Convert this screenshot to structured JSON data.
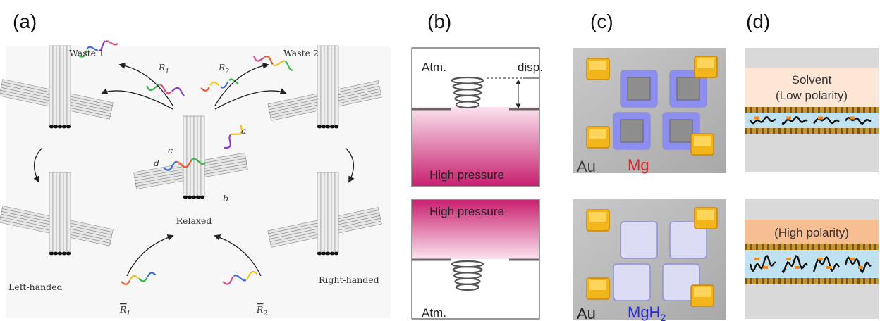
{
  "a": {
    "label": "(a)",
    "waste_1": "Waste 1",
    "waste_2": "Waste 2",
    "r1": {
      "base": "R",
      "sub": "1"
    },
    "r2": {
      "base": "R",
      "sub": "2"
    },
    "strand_labels": [
      "a",
      "b",
      "c",
      "d"
    ],
    "center": "Relaxed",
    "left": "Left-handed",
    "right": "Right-handed",
    "r1_bar": {
      "base": "R",
      "sub": "1"
    },
    "r2_bar": {
      "base": "R",
      "sub": "2"
    }
  },
  "b": {
    "label": "(b)",
    "top": {
      "atm": "Atm.",
      "disp": "disp.",
      "pressure": "High pressure"
    },
    "bottom": {
      "pressure": "High pressure",
      "atm": "Atm."
    }
  },
  "c": {
    "label": "(c)",
    "top": {
      "metal": "Au",
      "film": "Mg"
    },
    "bottom": {
      "metal": "Au",
      "film": {
        "base": "MgH",
        "sub": "2"
      }
    }
  },
  "d": {
    "label": "(d)",
    "top": {
      "solvent": "Solvent",
      "polarity": "(Low polarity)"
    },
    "bottom": {
      "polarity": "(High polarity)"
    }
  }
}
